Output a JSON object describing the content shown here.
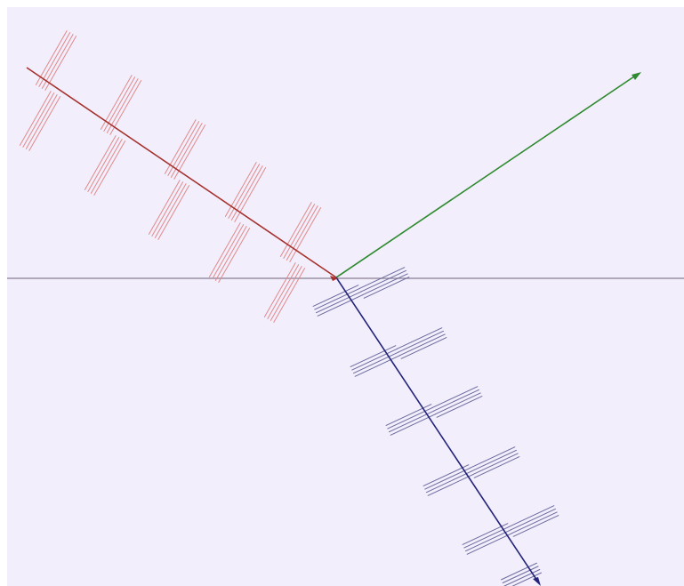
{
  "diagram": {
    "type": "wave-refraction",
    "colors": {
      "background": "#f2eefc",
      "interface": "#8a7d92",
      "incident": "#a6302c",
      "incident_fronts": "#e08a8a",
      "reflected": "#2e8a2e",
      "refracted": "#23237a",
      "refracted_fronts": "#6b6b9e"
    },
    "rays": [
      {
        "name": "incident",
        "color_key": "incident"
      },
      {
        "name": "reflected",
        "color_key": "reflected"
      },
      {
        "name": "refracted",
        "color_key": "refracted"
      }
    ],
    "wavefront_groups": [
      {
        "ray": "incident",
        "count": 5
      },
      {
        "ray": "refracted",
        "count": 5
      }
    ]
  }
}
